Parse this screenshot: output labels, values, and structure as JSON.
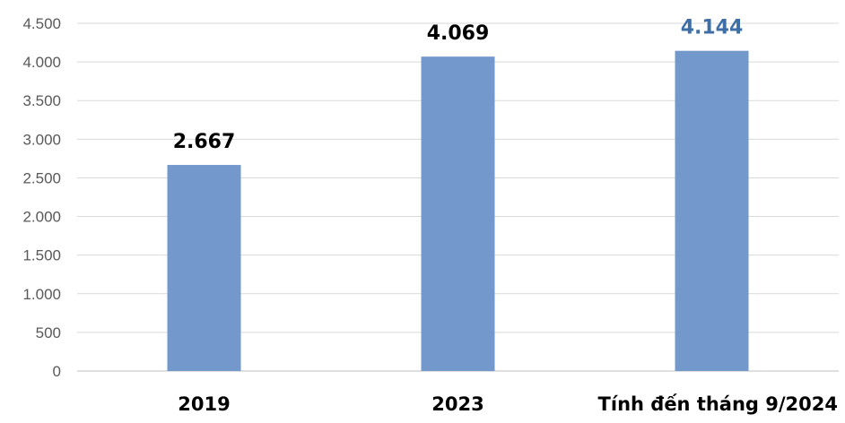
{
  "chart_data": {
    "type": "bar",
    "categories": [
      "2019",
      "2023",
      "Tính đến tháng 9/2024"
    ],
    "values": [
      2667,
      4069,
      4144
    ],
    "data_labels": [
      "2.667",
      "4.069",
      "4.144"
    ],
    "data_label_colors": [
      "#000000",
      "#000000",
      "#3e6ea6"
    ],
    "bar_color": "#7399cc",
    "ylim": [
      0,
      4500
    ],
    "y_ticks": [
      0,
      500,
      1000,
      1500,
      2000,
      2500,
      3000,
      3500,
      4000,
      4500
    ],
    "y_tick_labels": [
      "0",
      "500",
      "1.000",
      "1.500",
      "2.000",
      "2.500",
      "3.000",
      "3.500",
      "4.000",
      "4.500"
    ],
    "grid": true,
    "legend": "none",
    "title": "",
    "xlabel": "",
    "ylabel": ""
  }
}
